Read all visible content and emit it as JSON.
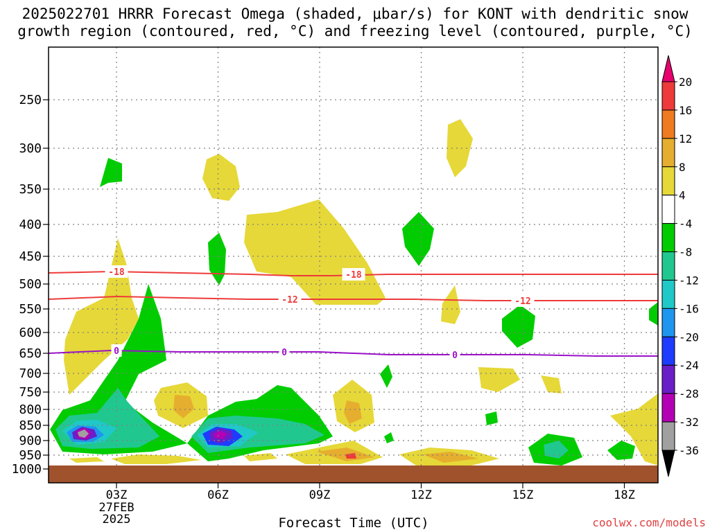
{
  "title": {
    "line1": "2025022701 HRRR Forecast Omega (shaded, μbar/s) for KONT with dendritic snow",
    "line2": "growth region (contoured, red, °C) and freezing level (contoured, purple, °C)"
  },
  "credit": "coolwx.com/models",
  "chart_data": {
    "type": "heatmap",
    "title": "2025022701 HRRR Forecast Omega (shaded, μbar/s) for KONT with dendritic snow growth region (contoured, red, °C) and freezing level (contoured, purple, °C)",
    "xlabel": "Forecast Time (UTC)",
    "ylabel": "",
    "x_ticks": [
      "03Z",
      "06Z",
      "09Z",
      "12Z",
      "15Z",
      "18Z"
    ],
    "x_sublabels": [
      "27FEB",
      "2025"
    ],
    "xlim_hours": [
      0,
      18
    ],
    "y_ticks": [
      250,
      300,
      350,
      400,
      450,
      500,
      550,
      600,
      650,
      700,
      750,
      800,
      850,
      900,
      950,
      1000
    ],
    "ylim_hpa": [
      200,
      1000
    ],
    "grid": true,
    "colorbar": {
      "levels": [
        20,
        16,
        12,
        8,
        4,
        -4,
        -8,
        -12,
        -16,
        -20,
        -24,
        -28,
        -32,
        -36
      ],
      "colors": [
        "#e8006e",
        "#ee3a3a",
        "#ef7a20",
        "#e6ae2e",
        "#e6d838",
        "#ffffff",
        "#00cc00",
        "#20c890",
        "#20c8c8",
        "#1e96f0",
        "#1e3cff",
        "#6a1ec8",
        "#b400b4",
        "#a0a0a0",
        "#000000"
      ]
    },
    "contours": [
      {
        "name": "-18",
        "color": "#ee3a3a",
        "label": "-18",
        "pressure_hpa": 478
      },
      {
        "name": "-12",
        "color": "#ee3a3a",
        "label": "-12",
        "pressure_hpa": 530
      },
      {
        "name": "0",
        "color": "#9a10c8",
        "label": "0",
        "pressure_hpa": 650
      }
    ],
    "contour_labels": [
      {
        "text": "-18",
        "color": "#ee3a3a"
      },
      {
        "text": "-18",
        "color": "#ee3a3a"
      },
      {
        "text": "-12",
        "color": "#ee3a3a"
      },
      {
        "text": "-12",
        "color": "#ee3a3a"
      },
      {
        "text": "0",
        "color": "#9a10c8"
      },
      {
        "text": "0",
        "color": "#9a10c8"
      },
      {
        "text": "0",
        "color": "#9a10c8"
      }
    ],
    "colors": {
      "ground": "#a0522d",
      "grid": "#808080"
    }
  }
}
